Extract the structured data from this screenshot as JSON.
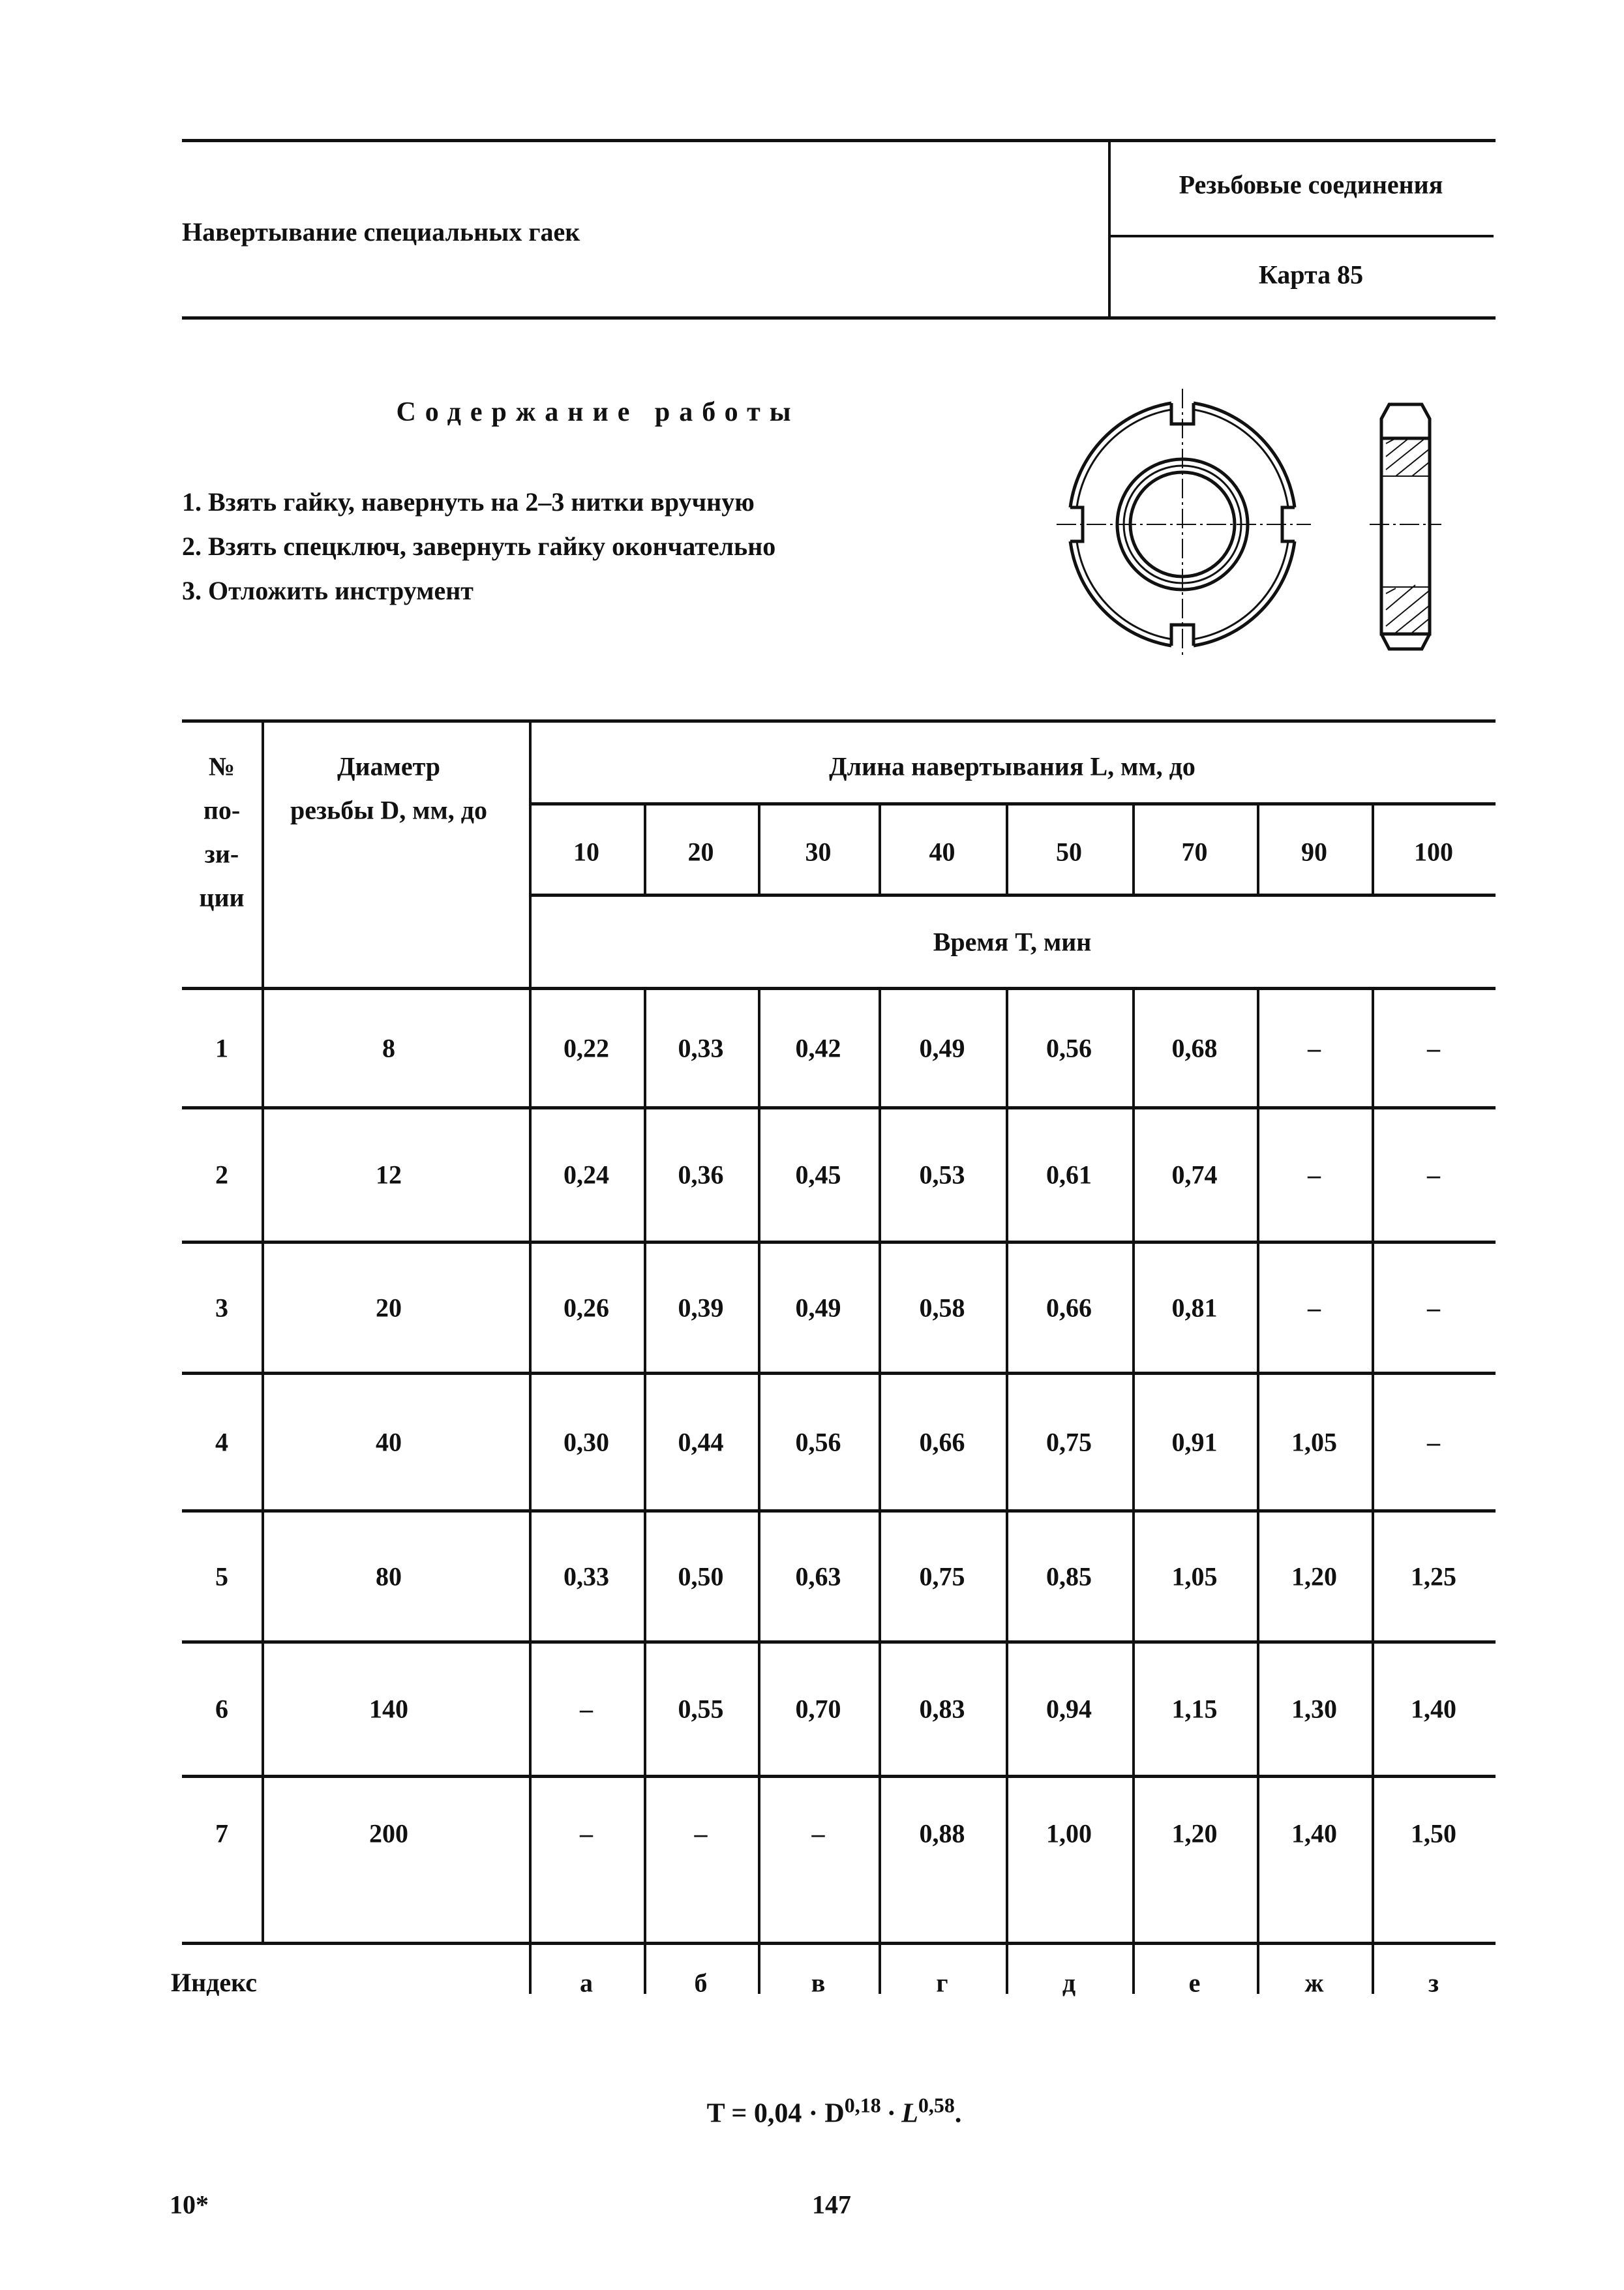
{
  "header": {
    "title": "Навертывание специальных гаек",
    "section": "Резьбовые соединения",
    "card": "Карта 85"
  },
  "work": {
    "heading": "Содержание работы",
    "steps": [
      "1. Взять гайку, навернуть на 2–3 нитки вручную",
      "2. Взять спецключ, завернуть гайку окончательно",
      "3. Отложить инструмент"
    ]
  },
  "drawing": {
    "icon": "round-slotted-nut-drawing"
  },
  "table": {
    "col_no": [
      "№",
      "по-",
      "зи-",
      "ции"
    ],
    "col_diam": [
      "Диаметр",
      "резьбы D, мм, до"
    ],
    "length_header": "Длина навертывания L, мм, до",
    "lengths": [
      "10",
      "20",
      "30",
      "40",
      "50",
      "70",
      "90",
      "100"
    ],
    "time_header": "Время T, мин",
    "rows": [
      {
        "no": "1",
        "d": "8",
        "t": [
          "0,22",
          "0,33",
          "0,42",
          "0,49",
          "0,56",
          "0,68",
          "–",
          "–"
        ]
      },
      {
        "no": "2",
        "d": "12",
        "t": [
          "0,24",
          "0,36",
          "0,45",
          "0,53",
          "0,61",
          "0,74",
          "–",
          "–"
        ]
      },
      {
        "no": "3",
        "d": "20",
        "t": [
          "0,26",
          "0,39",
          "0,49",
          "0,58",
          "0,66",
          "0,81",
          "–",
          "–"
        ]
      },
      {
        "no": "4",
        "d": "40",
        "t": [
          "0,30",
          "0,44",
          "0,56",
          "0,66",
          "0,75",
          "0,91",
          "1,05",
          "–"
        ]
      },
      {
        "no": "5",
        "d": "80",
        "t": [
          "0,33",
          "0,50",
          "0,63",
          "0,75",
          "0,85",
          "1,05",
          "1,20",
          "1,25"
        ]
      },
      {
        "no": "6",
        "d": "140",
        "t": [
          "–",
          "0,55",
          "0,70",
          "0,83",
          "0,94",
          "1,15",
          "1,30",
          "1,40"
        ]
      },
      {
        "no": "7",
        "d": "200",
        "t": [
          "–",
          "–",
          "–",
          "0,88",
          "1,00",
          "1,20",
          "1,40",
          "1,50"
        ]
      }
    ],
    "index_label": "Индекс",
    "index": [
      "а",
      "б",
      "в",
      "г",
      "д",
      "е",
      "ж",
      "з"
    ]
  },
  "formula": {
    "base": "T = 0,04 · D",
    "exp1": "0,18",
    "mid": " · L",
    "exp2": "0,58",
    "end": "."
  },
  "footer": {
    "signature": "10*",
    "page": "147"
  }
}
